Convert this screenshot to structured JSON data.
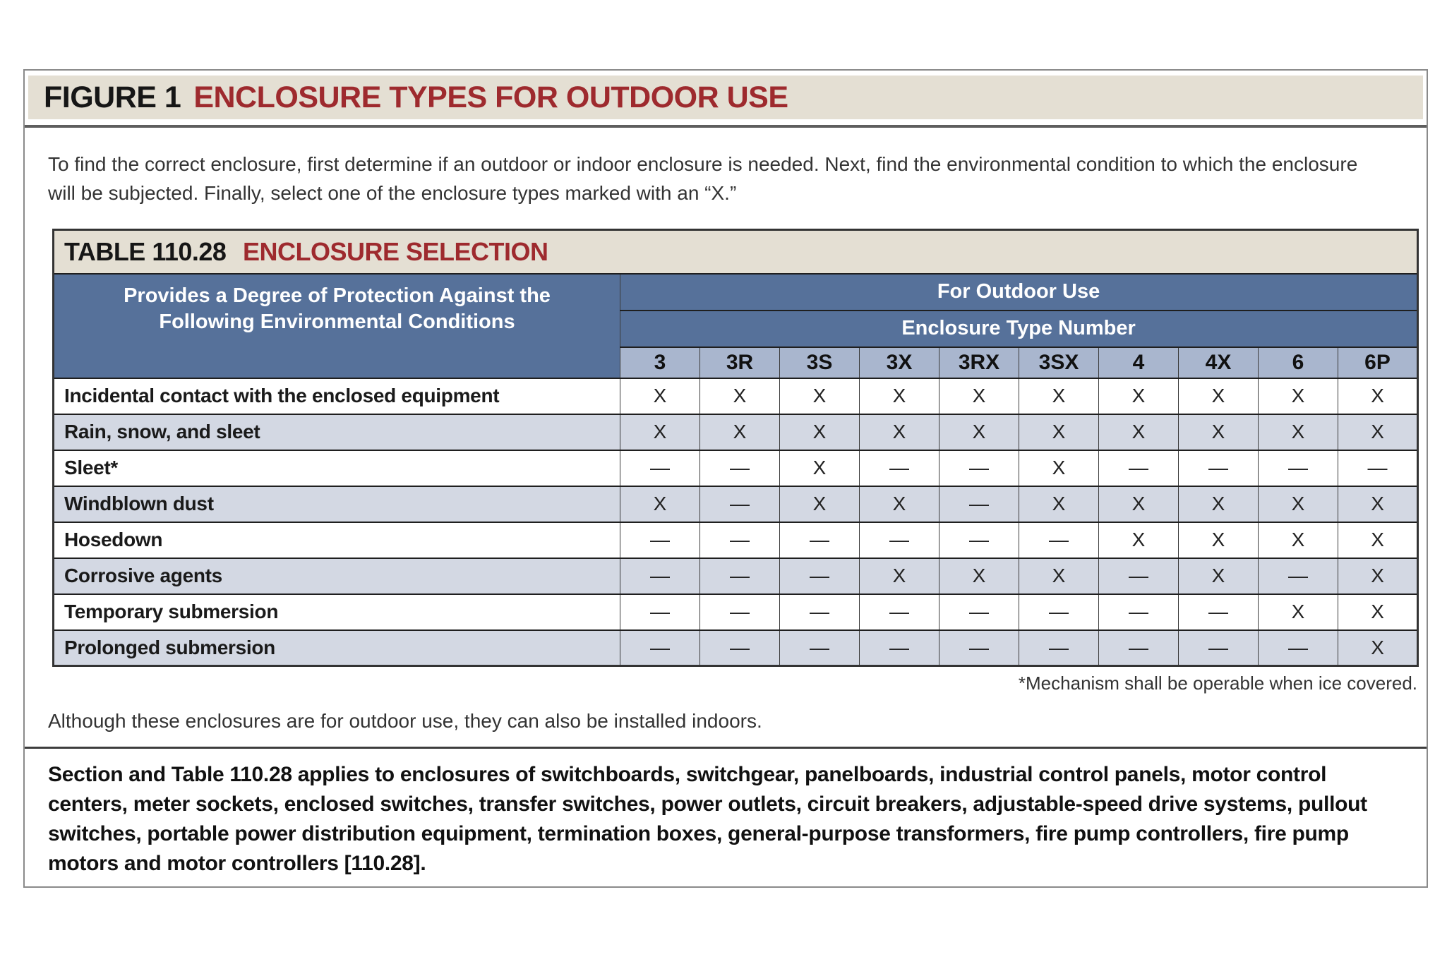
{
  "figure": {
    "label": "FIGURE 1",
    "title": "ENCLOSURE TYPES FOR OUTDOOR USE",
    "intro": "To find the correct enclosure, first determine if an outdoor or indoor enclosure is needed. Next, find the environmental condition to which the enclosure will be subjected. Finally, select one of the enclosure types marked with an “X.”"
  },
  "table": {
    "label": "TABLE 110.28",
    "title": "ENCLOSURE SELECTION",
    "row_header": "Provides a Degree of Protection Against the Following Environmental Conditions",
    "group_header": "For Outdoor Use",
    "subgroup_header": "Enclosure Type Number",
    "columns": [
      "3",
      "3R",
      "3S",
      "3X",
      "3RX",
      "3SX",
      "4",
      "4X",
      "6",
      "6P"
    ],
    "rows": [
      {
        "label": "Incidental contact with the enclosed equipment",
        "values": [
          "X",
          "X",
          "X",
          "X",
          "X",
          "X",
          "X",
          "X",
          "X",
          "X"
        ]
      },
      {
        "label": "Rain, snow, and sleet",
        "values": [
          "X",
          "X",
          "X",
          "X",
          "X",
          "X",
          "X",
          "X",
          "X",
          "X"
        ]
      },
      {
        "label": "Sleet*",
        "values": [
          "—",
          "—",
          "X",
          "—",
          "—",
          "X",
          "—",
          "—",
          "—",
          "—"
        ]
      },
      {
        "label": "Windblown dust",
        "values": [
          "X",
          "—",
          "X",
          "X",
          "—",
          "X",
          "X",
          "X",
          "X",
          "X"
        ]
      },
      {
        "label": "Hosedown",
        "values": [
          "—",
          "—",
          "—",
          "—",
          "—",
          "—",
          "X",
          "X",
          "X",
          "X"
        ]
      },
      {
        "label": "Corrosive agents",
        "values": [
          "—",
          "—",
          "—",
          "X",
          "X",
          "X",
          "—",
          "X",
          "—",
          "X"
        ]
      },
      {
        "label": "Temporary submersion",
        "values": [
          "—",
          "—",
          "—",
          "—",
          "—",
          "—",
          "—",
          "—",
          "X",
          "X"
        ]
      },
      {
        "label": "Prolonged submersion",
        "values": [
          "—",
          "—",
          "—",
          "—",
          "—",
          "—",
          "—",
          "—",
          "—",
          "X"
        ]
      }
    ],
    "footnote": "*Mechanism shall be operable when ice covered."
  },
  "notes": {
    "indoor_note": "Although these enclosures are for outdoor use, they can also be installed indoors.",
    "application_note": "Section and Table 110.28 applies to enclosures of switchboards, switchgear, panelboards, industrial control panels, motor control centers, meter sockets, enclosed switches, transfer switches, power outlets, circuit breakers, adjustable-speed drive systems, pullout switches, portable power distribution equipment, termination boxes, general-purpose transformers, fire pump controllers, fire pump motors and motor controllers [110.28]."
  },
  "colors": {
    "accent_red": "#9e2a2e",
    "header_blue": "#56719a",
    "column_blue": "#a9b6ce",
    "row_alt_blue": "#d3d8e3",
    "panel_beige": "#e4dfd3"
  }
}
